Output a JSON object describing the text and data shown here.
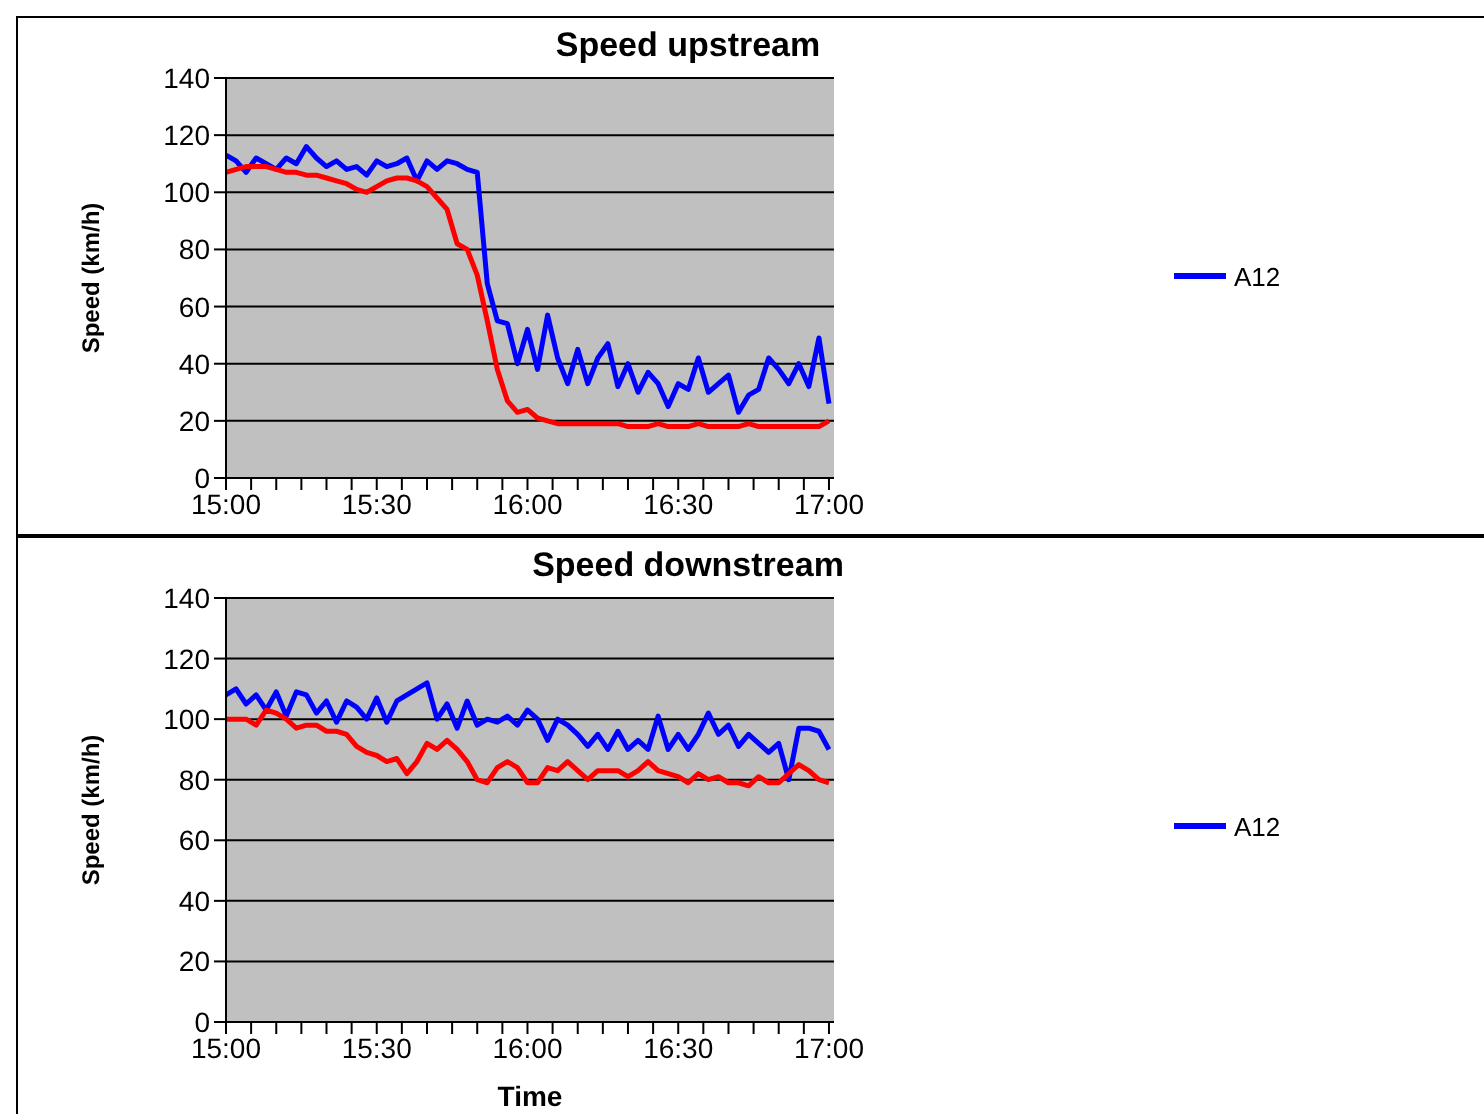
{
  "chart_data": [
    {
      "type": "line",
      "title": "Speed upstream",
      "ylabel": "Speed (km/h)",
      "grid": "y",
      "legend": "right",
      "marker": "none",
      "line_style": "solid",
      "xlim": [
        15,
        17.0167
      ],
      "ylim": [
        0,
        140
      ],
      "yticks": [
        0,
        20,
        40,
        60,
        80,
        100,
        120,
        140
      ],
      "xticks": [
        {
          "value": 15,
          "label": "15:00"
        },
        {
          "value": 15.0833,
          "label": null
        },
        {
          "value": 15.1667,
          "label": null
        },
        {
          "value": 15.25,
          "label": null
        },
        {
          "value": 15.3333,
          "label": null
        },
        {
          "value": 15.4167,
          "label": null
        },
        {
          "value": 15.5,
          "label": "15:30"
        },
        {
          "value": 15.5833,
          "label": null
        },
        {
          "value": 15.6667,
          "label": null
        },
        {
          "value": 15.75,
          "label": null
        },
        {
          "value": 15.8333,
          "label": null
        },
        {
          "value": 15.9167,
          "label": null
        },
        {
          "value": 16,
          "label": "16:00"
        },
        {
          "value": 16.0833,
          "label": null
        },
        {
          "value": 16.1667,
          "label": null
        },
        {
          "value": 16.25,
          "label": null
        },
        {
          "value": 16.3333,
          "label": null
        },
        {
          "value": 16.4167,
          "label": null
        },
        {
          "value": 16.5,
          "label": "16:30"
        },
        {
          "value": 16.5833,
          "label": null
        },
        {
          "value": 16.6667,
          "label": null
        },
        {
          "value": 16.75,
          "label": null
        },
        {
          "value": 16.8333,
          "label": null
        },
        {
          "value": 16.9167,
          "label": null
        },
        {
          "value": 17,
          "label": "17:00"
        }
      ],
      "x": [
        15,
        15.0333,
        15.0667,
        15.1,
        15.1333,
        15.1667,
        15.2,
        15.2333,
        15.2667,
        15.3,
        15.3333,
        15.3667,
        15.4,
        15.4333,
        15.4667,
        15.5,
        15.5333,
        15.5667,
        15.6,
        15.6333,
        15.6667,
        15.7,
        15.7333,
        15.7667,
        15.8,
        15.8333,
        15.8667,
        15.9,
        15.9333,
        15.9667,
        16,
        16.0333,
        16.0667,
        16.1,
        16.1333,
        16.1667,
        16.2,
        16.2333,
        16.2667,
        16.3,
        16.3333,
        16.3667,
        16.4,
        16.4333,
        16.4667,
        16.5,
        16.5333,
        16.5667,
        16.6,
        16.6333,
        16.6667,
        16.7,
        16.7333,
        16.7667,
        16.8,
        16.8333,
        16.8667,
        16.9,
        16.9333,
        16.9667,
        17
      ],
      "series": [
        {
          "name": "A12",
          "color": "#0000ff",
          "values": [
            113,
            111,
            107,
            112,
            110,
            108,
            112,
            110,
            116,
            112,
            109,
            111,
            108,
            109,
            106,
            111,
            109,
            110,
            112,
            104,
            111,
            108,
            111,
            110,
            108,
            107,
            68,
            55,
            54,
            40,
            52,
            38,
            57,
            42,
            33,
            45,
            33,
            42,
            47,
            32,
            40,
            30,
            37,
            33,
            25,
            33,
            31,
            42,
            30,
            33,
            36,
            23,
            29,
            31,
            42,
            38,
            33,
            40,
            32,
            49,
            26
          ]
        },
        {
          "color": "#ff0000",
          "values": [
            107,
            108,
            109,
            109,
            109,
            108,
            107,
            107,
            106,
            106,
            105,
            104,
            103,
            101,
            100,
            102,
            104,
            105,
            105,
            104,
            102,
            98,
            94,
            82,
            80,
            71,
            55,
            38,
            27,
            23,
            24,
            21,
            20,
            19,
            19,
            19,
            19,
            19,
            19,
            19,
            18,
            18,
            18,
            19,
            18,
            18,
            18,
            19,
            18,
            18,
            18,
            18,
            19,
            18,
            18,
            18,
            18,
            18,
            18,
            18,
            20
          ]
        }
      ]
    },
    {
      "type": "line",
      "title": "Speed downstream",
      "xlabel": "Time",
      "ylabel": "Speed (km/h)",
      "grid": "y",
      "legend": "right",
      "marker": "none",
      "line_style": "solid",
      "xlim": [
        15,
        17.0167
      ],
      "ylim": [
        0,
        140
      ],
      "yticks": [
        0,
        20,
        40,
        60,
        80,
        100,
        120,
        140
      ],
      "xticks": [
        {
          "value": 15,
          "label": "15:00"
        },
        {
          "value": 15.0833,
          "label": null
        },
        {
          "value": 15.1667,
          "label": null
        },
        {
          "value": 15.25,
          "label": null
        },
        {
          "value": 15.3333,
          "label": null
        },
        {
          "value": 15.4167,
          "label": null
        },
        {
          "value": 15.5,
          "label": "15:30"
        },
        {
          "value": 15.5833,
          "label": null
        },
        {
          "value": 15.6667,
          "label": null
        },
        {
          "value": 15.75,
          "label": null
        },
        {
          "value": 15.8333,
          "label": null
        },
        {
          "value": 15.9167,
          "label": null
        },
        {
          "value": 16,
          "label": "16:00"
        },
        {
          "value": 16.0833,
          "label": null
        },
        {
          "value": 16.1667,
          "label": null
        },
        {
          "value": 16.25,
          "label": null
        },
        {
          "value": 16.3333,
          "label": null
        },
        {
          "value": 16.4167,
          "label": null
        },
        {
          "value": 16.5,
          "label": "16:30"
        },
        {
          "value": 16.5833,
          "label": null
        },
        {
          "value": 16.6667,
          "label": null
        },
        {
          "value": 16.75,
          "label": null
        },
        {
          "value": 16.8333,
          "label": null
        },
        {
          "value": 16.9167,
          "label": null
        },
        {
          "value": 17,
          "label": "17:00"
        }
      ],
      "x": [
        15,
        15.0333,
        15.0667,
        15.1,
        15.1333,
        15.1667,
        15.2,
        15.2333,
        15.2667,
        15.3,
        15.3333,
        15.3667,
        15.4,
        15.4333,
        15.4667,
        15.5,
        15.5333,
        15.5667,
        15.6,
        15.6333,
        15.6667,
        15.7,
        15.7333,
        15.7667,
        15.8,
        15.8333,
        15.8667,
        15.9,
        15.9333,
        15.9667,
        16,
        16.0333,
        16.0667,
        16.1,
        16.1333,
        16.1667,
        16.2,
        16.2333,
        16.2667,
        16.3,
        16.3333,
        16.3667,
        16.4,
        16.4333,
        16.4667,
        16.5,
        16.5333,
        16.5667,
        16.6,
        16.6333,
        16.6667,
        16.7,
        16.7333,
        16.7667,
        16.8,
        16.8333,
        16.8667,
        16.9,
        16.9333,
        16.9667,
        17
      ],
      "series": [
        {
          "name": "A12",
          "color": "#0000ff",
          "values": [
            108,
            110,
            105,
            108,
            103,
            109,
            101,
            109,
            108,
            102,
            106,
            99,
            106,
            104,
            100,
            107,
            99,
            106,
            108,
            110,
            112,
            100,
            105,
            97,
            106,
            98,
            100,
            99,
            101,
            98,
            103,
            100,
            93,
            100,
            98,
            95,
            91,
            95,
            90,
            96,
            90,
            93,
            90,
            101,
            90,
            95,
            90,
            95,
            102,
            95,
            98,
            91,
            95,
            92,
            89,
            92,
            80,
            97,
            97,
            96,
            90
          ]
        },
        {
          "color": "#ff0000",
          "values": [
            100,
            100,
            100,
            98,
            103,
            102,
            100,
            97,
            98,
            98,
            96,
            96,
            95,
            91,
            89,
            88,
            86,
            87,
            82,
            86,
            92,
            90,
            93,
            90,
            86,
            80,
            79,
            84,
            86,
            84,
            79,
            79,
            84,
            83,
            86,
            83,
            80,
            83,
            83,
            83,
            81,
            83,
            86,
            83,
            82,
            81,
            79,
            82,
            80,
            81,
            79,
            79,
            78,
            81,
            79,
            79,
            82,
            85,
            83,
            80,
            79
          ]
        }
      ]
    }
  ]
}
